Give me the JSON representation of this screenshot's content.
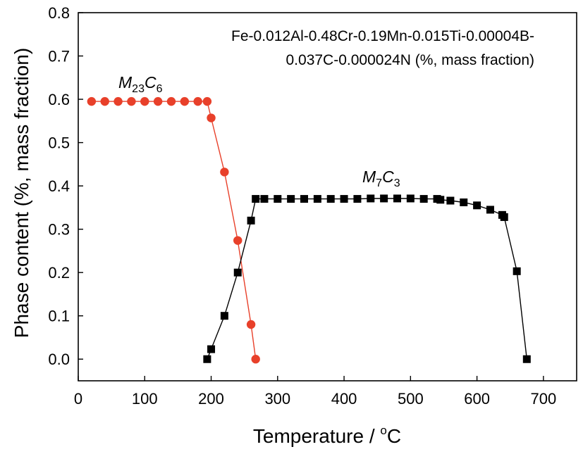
{
  "chart_data": {
    "type": "line",
    "xlabel": "Temperature / °C",
    "xlabel_main": "Temperature / ",
    "xlabel_sup": "o",
    "xlabel_unit": "C",
    "ylabel": "Phase content (%, mass fraction)",
    "xlim": [
      0,
      750
    ],
    "ylim": [
      -0.05,
      0.8
    ],
    "x_ticks": [
      0,
      100,
      200,
      300,
      400,
      500,
      600,
      700
    ],
    "x_tick_labels": [
      "0",
      "100",
      "200",
      "300",
      "400",
      "500",
      "600",
      "700"
    ],
    "y_ticks": [
      0,
      0.1,
      0.2,
      0.3,
      0.4,
      0.5,
      0.6,
      0.7,
      0.8
    ],
    "y_tick_labels": [
      "0.0",
      "0.1",
      "0.2",
      "0.3",
      "0.4",
      "0.5",
      "0.6",
      "0.7",
      "0.8"
    ],
    "grid": false,
    "annotation": {
      "line1": "Fe-0.012Al-0.48Cr-0.19Mn-0.015Ti-0.00004B-",
      "line2": "0.037C-0.000024N (%, mass fraction)"
    },
    "series": [
      {
        "name": "M23C6",
        "label_main": "M",
        "label_sub1": "23",
        "label_mid": "C",
        "label_sub2": "6",
        "color": "#e8402a",
        "marker": "circle",
        "x": [
          20,
          40,
          60,
          80,
          100,
          120,
          140,
          160,
          180,
          194,
          200,
          220,
          240,
          260,
          267
        ],
        "y": [
          0.595,
          0.595,
          0.595,
          0.595,
          0.595,
          0.595,
          0.595,
          0.595,
          0.595,
          0.595,
          0.557,
          0.432,
          0.274,
          0.08,
          0.0
        ]
      },
      {
        "name": "M7C3",
        "label_main": "M",
        "label_sub1": "7",
        "label_mid": "C",
        "label_sub2": "3",
        "color": "#000000",
        "marker": "square",
        "x": [
          194,
          200,
          220,
          240,
          260,
          267,
          280,
          300,
          320,
          340,
          360,
          380,
          400,
          420,
          440,
          460,
          480,
          500,
          520,
          540,
          545,
          560,
          580,
          600,
          620,
          638,
          641,
          660,
          675
        ],
        "y": [
          0.0,
          0.023,
          0.1,
          0.2,
          0.32,
          0.37,
          0.37,
          0.37,
          0.37,
          0.37,
          0.37,
          0.37,
          0.37,
          0.37,
          0.371,
          0.371,
          0.371,
          0.371,
          0.37,
          0.37,
          0.368,
          0.366,
          0.362,
          0.355,
          0.345,
          0.333,
          0.328,
          0.203,
          0.0
        ]
      }
    ]
  }
}
